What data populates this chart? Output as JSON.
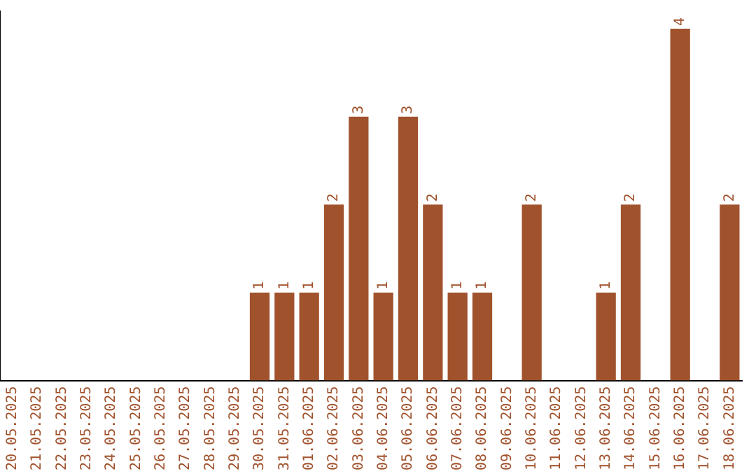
{
  "chart_data": {
    "type": "bar",
    "categories": [
      "20.05.2025",
      "21.05.2025",
      "22.05.2025",
      "23.05.2025",
      "24.05.2025",
      "25.05.2025",
      "26.05.2025",
      "27.05.2025",
      "28.05.2025",
      "29.05.2025",
      "30.05.2025",
      "31.05.2025",
      "01.06.2025",
      "02.06.2025",
      "03.06.2025",
      "04.06.2025",
      "05.06.2025",
      "06.06.2025",
      "07.06.2025",
      "08.06.2025",
      "09.06.2025",
      "10.06.2025",
      "11.06.2025",
      "12.06.2025",
      "13.06.2025",
      "14.06.2025",
      "15.06.2025",
      "16.06.2025",
      "17.06.2025",
      "18.06.2025"
    ],
    "values": [
      0,
      0,
      0,
      0,
      0,
      0,
      0,
      0,
      0,
      0,
      1,
      1,
      1,
      2,
      3,
      1,
      3,
      2,
      1,
      1,
      0,
      2,
      0,
      0,
      1,
      2,
      0,
      4,
      0,
      2
    ],
    "value_labels": [
      null,
      null,
      null,
      null,
      null,
      null,
      null,
      null,
      null,
      null,
      "1",
      "1",
      "1",
      "2",
      "3",
      "1",
      "3",
      "2",
      "1",
      "1",
      null,
      "2",
      null,
      null,
      "1",
      "2",
      null,
      "4",
      null,
      "2"
    ],
    "color": "#a0522d",
    "ylim": [
      0,
      4.2
    ],
    "tick_labels": "x",
    "grid": false,
    "legend": false
  }
}
